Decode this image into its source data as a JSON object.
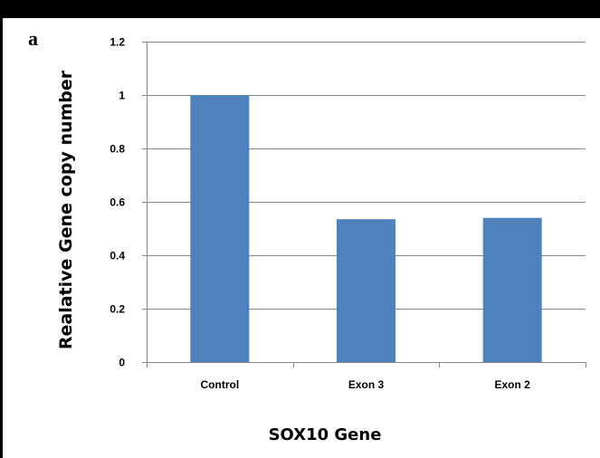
{
  "panel_label": "a",
  "chart_data": {
    "type": "bar",
    "categories": [
      "Control",
      "Exon 3",
      "Exon 2"
    ],
    "values": [
      1.0,
      0.535,
      0.54
    ],
    "xlabel": "SOX10 Gene",
    "ylabel": "Realative Gene copy number",
    "ylim": [
      0,
      1.2
    ],
    "yticks": [
      "0",
      "0.2",
      "0.4",
      "0.6",
      "0.8",
      "1",
      "1.2"
    ],
    "ytick_values": [
      0,
      0.2,
      0.4,
      0.6,
      0.8,
      1.0,
      1.2
    ],
    "grid": true,
    "legend": "none",
    "bar_color": "#4f81bd",
    "grid_color": "#888888"
  }
}
